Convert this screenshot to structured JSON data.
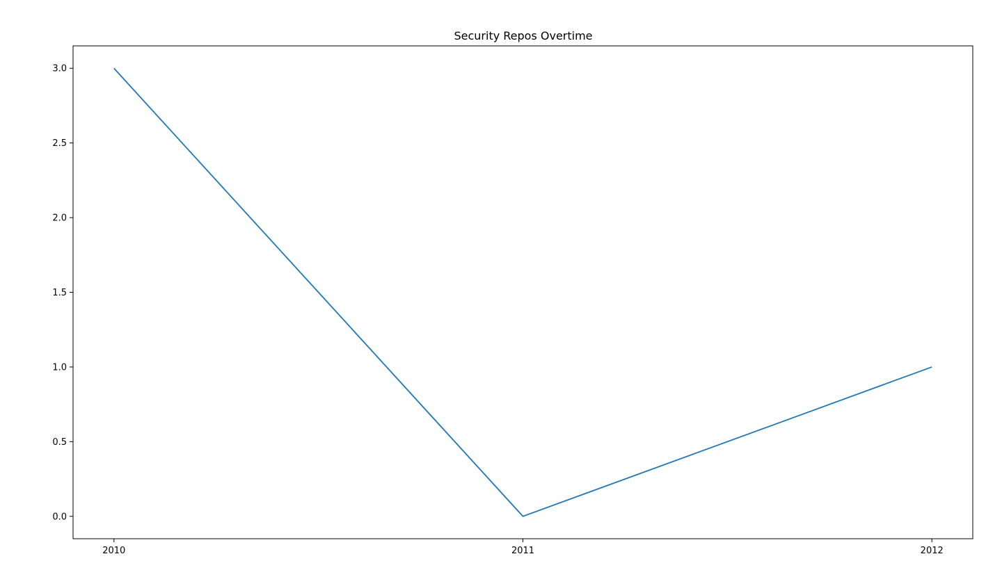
{
  "chart_data": {
    "type": "line",
    "title": "Security Repos Overtime",
    "xlabel": "",
    "ylabel": "",
    "x": [
      2010,
      2011,
      2012
    ],
    "series": [
      {
        "values": [
          3,
          0,
          1
        ],
        "color": "#1f77b4"
      }
    ],
    "x_ticks": [
      "2010",
      "2011",
      "2012"
    ],
    "y_ticks": [
      "0.0",
      "0.5",
      "1.0",
      "1.5",
      "2.0",
      "2.5",
      "3.0"
    ],
    "xlim": [
      2009.9,
      2012.1
    ],
    "ylim": [
      -0.15,
      3.15
    ],
    "grid": false,
    "legend": "none"
  }
}
